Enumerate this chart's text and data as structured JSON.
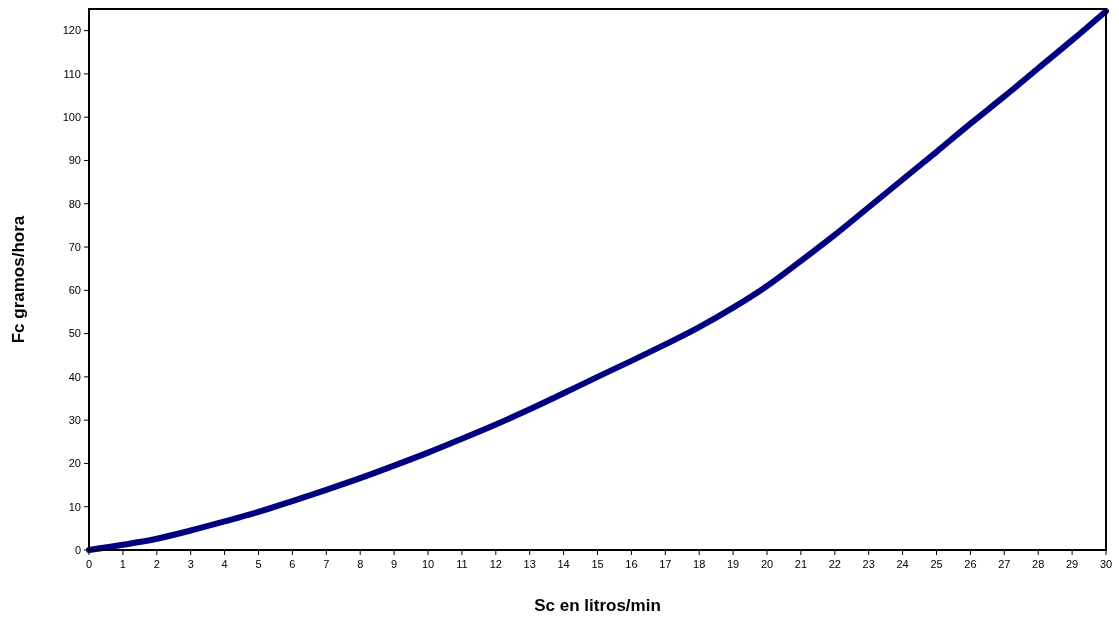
{
  "chart_data": {
    "type": "line",
    "xlabel": "Sc en litros/min",
    "ylabel": "Fc gramos/hora",
    "x": [
      0,
      1,
      2,
      3,
      4,
      5,
      6,
      7,
      8,
      9,
      10,
      11,
      12,
      13,
      14,
      15,
      16,
      17,
      18,
      19,
      20,
      21,
      22,
      23,
      24,
      25,
      26,
      27,
      28,
      29,
      30
    ],
    "series": [
      {
        "color": "#000080",
        "values": [
          0,
          1.2,
          2.6,
          4.5,
          6.6,
          8.8,
          11.3,
          13.9,
          16.6,
          19.5,
          22.5,
          25.7,
          29,
          32.5,
          36.2,
          40,
          43.7,
          47.5,
          51.5,
          56,
          61,
          66.8,
          72.8,
          79.2,
          85.6,
          92,
          98.5,
          104.8,
          111.3,
          117.8,
          124.5
        ]
      }
    ],
    "xlim": [
      0,
      30
    ],
    "xticks": [
      0,
      1,
      2,
      3,
      4,
      5,
      6,
      7,
      8,
      9,
      10,
      11,
      12,
      13,
      14,
      15,
      16,
      17,
      18,
      19,
      20,
      21,
      22,
      23,
      24,
      25,
      26,
      27,
      28,
      29,
      30
    ],
    "ylim": [
      0,
      125
    ],
    "yticks": [
      0,
      10,
      20,
      30,
      40,
      50,
      60,
      70,
      80,
      90,
      100,
      110,
      120
    ],
    "grid": false,
    "marker": "none",
    "line_style": "solid"
  }
}
